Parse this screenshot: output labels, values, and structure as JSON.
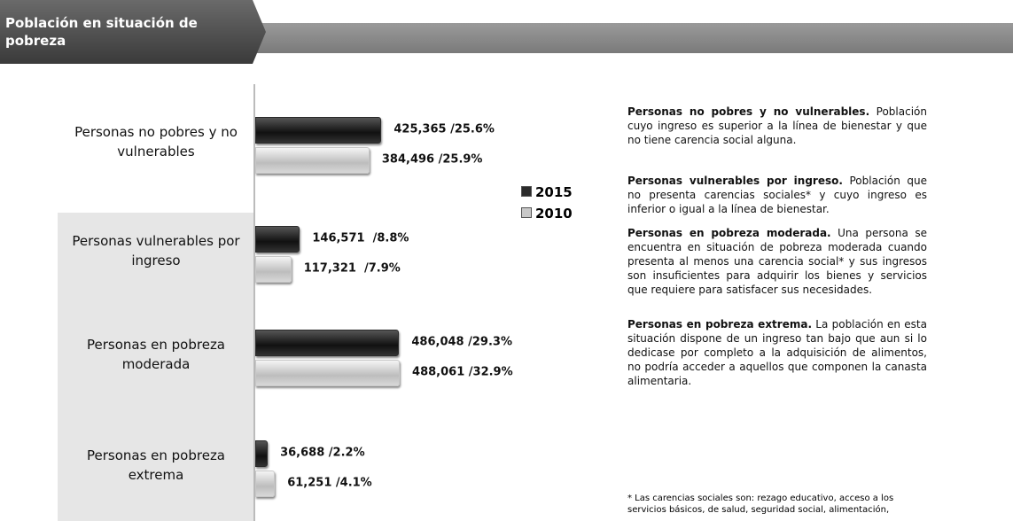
{
  "chart_data": {
    "type": "bar",
    "orientation": "horizontal",
    "title": "Población en situación de pobreza",
    "categories": [
      "Personas no pobres y no vulnerables",
      "Personas vulnerables por ingreso",
      "Personas en  pobreza moderada",
      "Personas en pobreza extrema"
    ],
    "series": [
      {
        "name": "2015",
        "color": "#2b2b2b",
        "values": [
          425365,
          146571,
          486048,
          36688
        ],
        "value_labels": [
          "425,365 /25.6%",
          "146,571  /8.8%",
          "486,048 /29.3%",
          "36,688 /2.2%"
        ]
      },
      {
        "name": "2010",
        "color": "#c8c8c8",
        "values": [
          384496,
          117321,
          488061,
          61251
        ],
        "value_labels": [
          "384,496 /25.9%",
          "117,321  /7.9%",
          "488,061 /32.9%",
          "61,251 /4.1%"
        ]
      }
    ]
  },
  "definitions": [
    {
      "term": "Personas no pobres y no vulnerables.",
      "text": "Población cuyo ingreso es superior a la línea de bienestar y que no tiene carencia social alguna."
    },
    {
      "term": "Personas vulnerables por ingreso.",
      "text": "Población que no presenta carencias sociales* y cuyo ingreso es inferior o igual a la línea de bienestar."
    },
    {
      "term": "Personas en  pobreza moderada.",
      "text": "Una persona se encuentra en situación de pobreza moderada cuando presenta al menos una carencia social* y sus ingresos son insuficientes para adquirir los bienes y servicios que requiere para satisfacer sus necesidades."
    },
    {
      "term": "Personas en pobreza extrema.",
      "text": "La población en esta situación dispone de un ingreso tan bajo que aun si lo dedicase por completo a la adquisición de alimentos, no podría acceder a aquellos que componen la canasta alimentaria."
    }
  ],
  "footnote": "* Las carencias sociales son: rezago educativo, acceso a los servicios básicos, de salud, seguridad social, alimentación,"
}
